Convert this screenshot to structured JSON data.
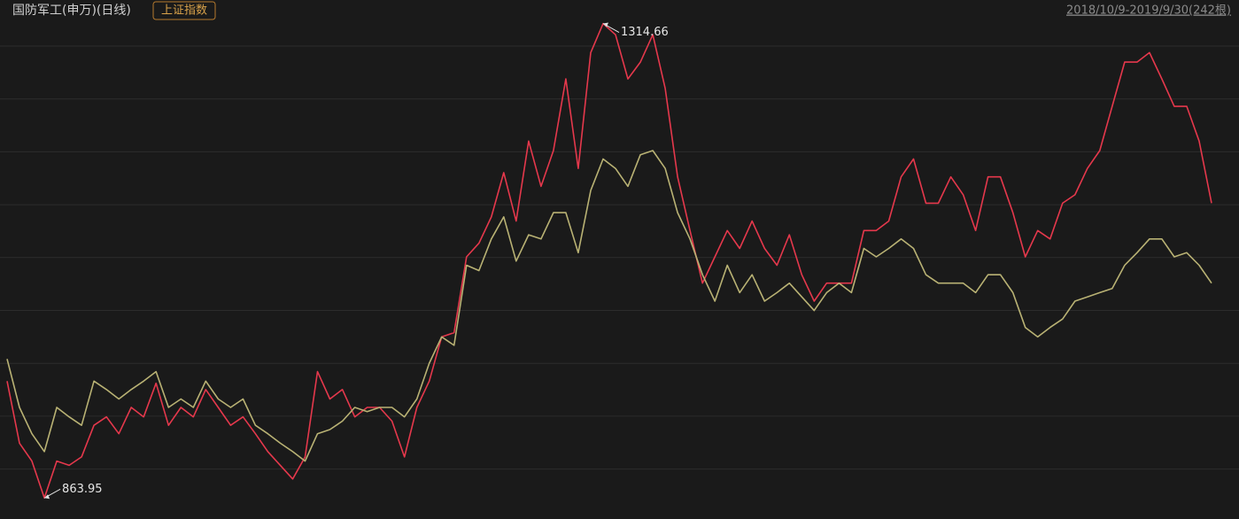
{
  "chart_data": {
    "type": "line",
    "date_range": "2018/10/9-2019/9/30(242根)",
    "ylim": [
      844,
      1337
    ],
    "grid": true,
    "annotations": [
      1314.66,
      863.95
    ],
    "series": [
      {
        "name": "国防军工(申万)(日线)",
        "color": "#e5384c",
        "values": [
          975,
          916,
          899,
          863.95,
          899,
          895,
          903,
          933,
          941,
          925,
          950,
          941,
          973,
          933,
          950,
          941,
          967,
          950,
          933,
          941,
          925,
          908,
          895,
          882,
          903,
          984,
          958,
          967,
          941,
          950,
          950,
          937,
          903,
          950,
          975,
          1017,
          1021,
          1093,
          1106,
          1131,
          1173,
          1127,
          1203,
          1160,
          1194,
          1262,
          1177,
          1287,
          1314.66,
          1304,
          1262,
          1278,
          1304,
          1253,
          1169,
          1118,
          1068,
          1093,
          1118,
          1101,
          1127,
          1101,
          1085,
          1114,
          1076,
          1051,
          1068,
          1068,
          1068,
          1118,
          1118,
          1127,
          1169,
          1186,
          1144,
          1144,
          1169,
          1152,
          1118,
          1169,
          1169,
          1135,
          1093,
          1118,
          1110,
          1144,
          1152,
          1177,
          1194,
          1236,
          1278,
          1278,
          1287,
          1262,
          1236,
          1236,
          1203,
          1144
        ]
      },
      {
        "name": "上证指数",
        "color": "#b9b274",
        "values": [
          996,
          950,
          925,
          908,
          950,
          941,
          933,
          975,
          967,
          958,
          967,
          975,
          984,
          950,
          958,
          950,
          975,
          958,
          950,
          958,
          933,
          925,
          916,
          908,
          899,
          925,
          929,
          937,
          950,
          946,
          950,
          950,
          941,
          958,
          992,
          1017,
          1009,
          1085,
          1080,
          1110,
          1131,
          1089,
          1114,
          1110,
          1135,
          1135,
          1097,
          1156,
          1186,
          1177,
          1160,
          1190,
          1194,
          1177,
          1135,
          1110,
          1076,
          1051,
          1085,
          1059,
          1076,
          1051,
          1059,
          1068,
          1055,
          1042,
          1059,
          1068,
          1059,
          1101,
          1093,
          1101,
          1110,
          1101,
          1076,
          1068,
          1068,
          1068,
          1059,
          1076,
          1076,
          1059,
          1026,
          1017,
          1026,
          1034,
          1051,
          1055,
          1059,
          1063,
          1085,
          1097,
          1110,
          1110,
          1093,
          1097,
          1085,
          1068
        ]
      }
    ]
  }
}
